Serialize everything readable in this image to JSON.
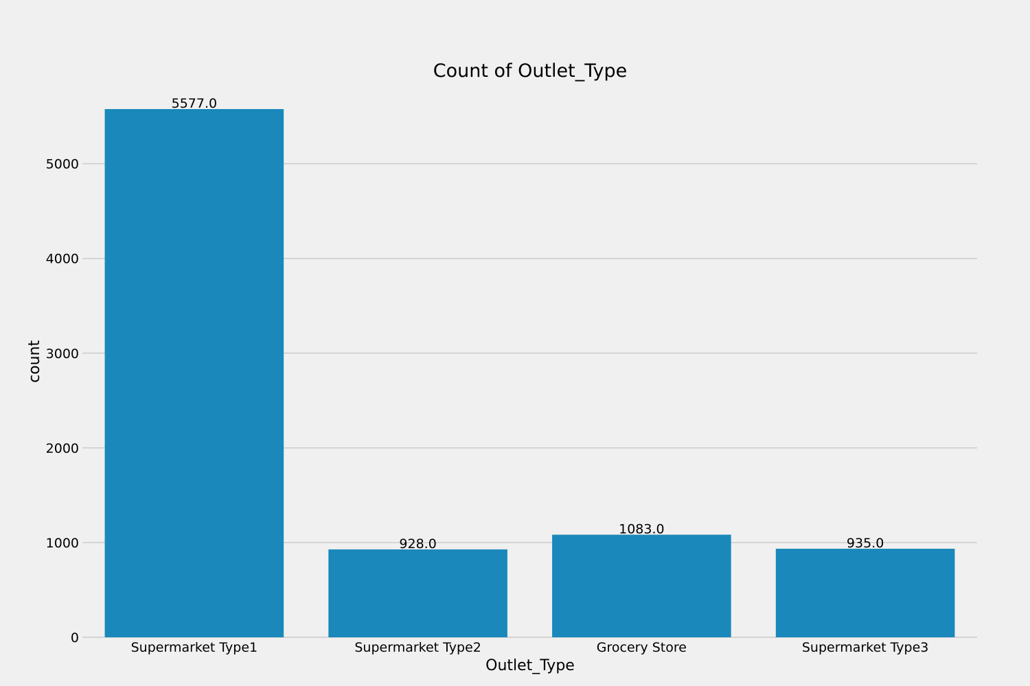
{
  "chart_data": {
    "type": "bar",
    "title": "Count of Outlet_Type",
    "xlabel": "Outlet_Type",
    "ylabel": "count",
    "categories": [
      "Supermarket Type1",
      "Supermarket Type2",
      "Grocery Store",
      "Supermarket Type3"
    ],
    "values": [
      5577,
      928,
      1083,
      935
    ],
    "data_labels": [
      "5577.0",
      "928.0",
      "1083.0",
      "935.0"
    ],
    "y_ticks": [
      0,
      1000,
      2000,
      3000,
      4000,
      5000
    ],
    "ylim": [
      0,
      5577
    ],
    "grid": true,
    "bar_color": "#1a88bb",
    "background_color": "#f0f0f0"
  }
}
